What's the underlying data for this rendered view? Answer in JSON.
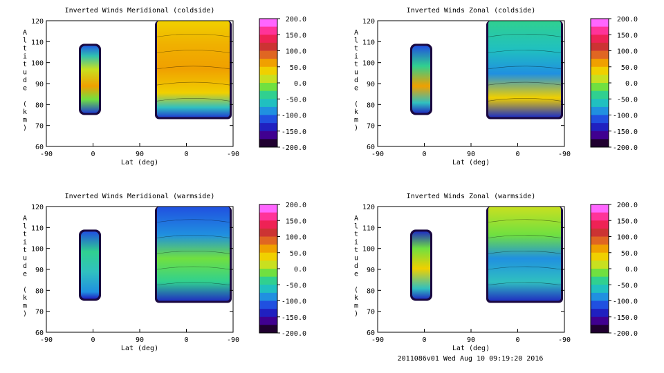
{
  "footer": "2011086v01 Wed Aug 10 09:19:20 2016",
  "colorbar": {
    "labels": [
      "200.0",
      "150.0",
      "100.0",
      "50.0",
      "0.0",
      "-50.0",
      "-100.0",
      "-150.0",
      "-200.0"
    ],
    "colors": [
      "#ff66ff",
      "#ff3399",
      "#ee2255",
      "#cc3333",
      "#e06622",
      "#f0a000",
      "#f0d000",
      "#c8e020",
      "#70e040",
      "#30d090",
      "#20c0c0",
      "#2090e0",
      "#2050e0",
      "#2020c0",
      "#400090",
      "#200030"
    ]
  },
  "chart_data": [
    {
      "type": "heatmap",
      "title": "Inverted Winds Meridional (coldside)",
      "xlabel": "Lat (deg)",
      "ylabel": "Altitude (km)",
      "xticks": [
        "-90",
        "0",
        "90",
        "0",
        "-90"
      ],
      "yticks": [
        "60",
        "70",
        "80",
        "90",
        "100",
        "110",
        "120"
      ],
      "ylim": [
        60,
        120
      ],
      "zlim": [
        -200,
        200
      ],
      "regions": [
        {
          "name": "left-block",
          "alt_range": [
            76,
            108
          ],
          "value_estimate": 30
        },
        {
          "name": "right-block",
          "alt_range": [
            74,
            120
          ],
          "value_estimate": 50
        }
      ]
    },
    {
      "type": "heatmap",
      "title": "Inverted Winds Zonal (coldside)",
      "xlabel": "Lat (deg)",
      "ylabel": "Altitude (km)",
      "xticks": [
        "-90",
        "0",
        "90",
        "0",
        "-90"
      ],
      "yticks": [
        "60",
        "70",
        "80",
        "90",
        "100",
        "110",
        "120"
      ],
      "ylim": [
        60,
        120
      ],
      "zlim": [
        -200,
        200
      ],
      "regions": [
        {
          "name": "left-block",
          "alt_range": [
            76,
            108
          ],
          "value_estimate": -20
        },
        {
          "name": "right-block",
          "alt_range": [
            74,
            120
          ],
          "value_estimate": -80
        }
      ]
    },
    {
      "type": "heatmap",
      "title": "Inverted Winds Meridional (warmside)",
      "xlabel": "Lat (deg)",
      "ylabel": "Altitude (km)",
      "xticks": [
        "-90",
        "0",
        "90",
        "0",
        "-90"
      ],
      "yticks": [
        "60",
        "70",
        "80",
        "90",
        "100",
        "110",
        "120"
      ],
      "ylim": [
        60,
        120
      ],
      "zlim": [
        -200,
        200
      ],
      "regions": [
        {
          "name": "left-block",
          "alt_range": [
            76,
            108
          ],
          "value_estimate": -70
        },
        {
          "name": "right-block",
          "alt_range": [
            75,
            120
          ],
          "value_estimate": -90
        }
      ]
    },
    {
      "type": "heatmap",
      "title": "Inverted Winds Zonal (warmside)",
      "xlabel": "Lat (deg)",
      "ylabel": "Altitude (km)",
      "xticks": [
        "-90",
        "0",
        "90",
        "0",
        "-90"
      ],
      "yticks": [
        "60",
        "70",
        "80",
        "90",
        "100",
        "110",
        "120"
      ],
      "ylim": [
        60,
        120
      ],
      "zlim": [
        -200,
        200
      ],
      "regions": [
        {
          "name": "left-block",
          "alt_range": [
            76,
            108
          ],
          "value_estimate": 10
        },
        {
          "name": "right-block",
          "alt_range": [
            75,
            120
          ],
          "value_estimate": -60
        }
      ]
    }
  ]
}
